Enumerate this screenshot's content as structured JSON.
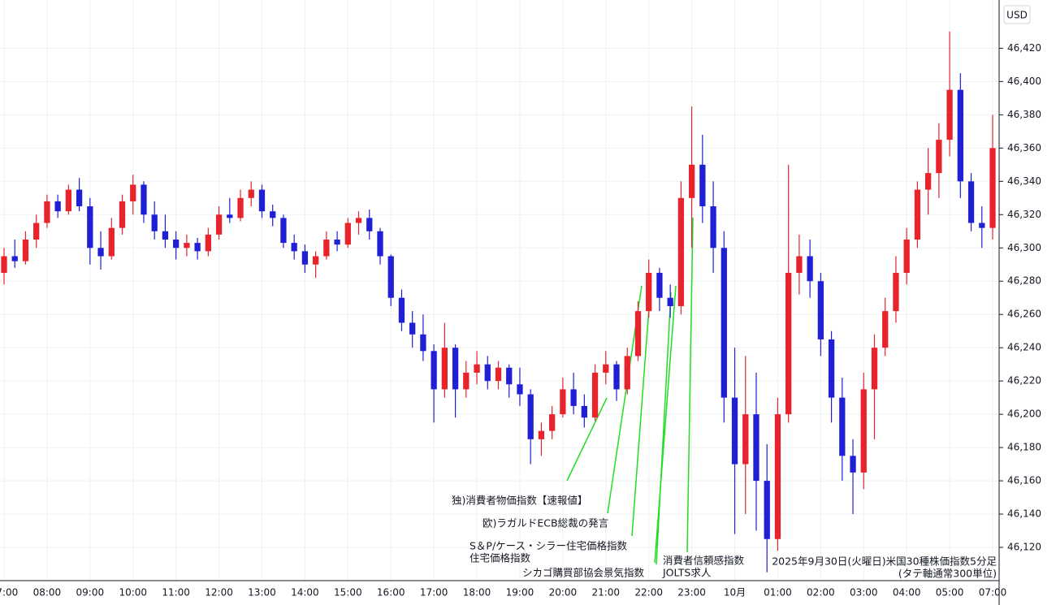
{
  "chart_data": {
    "type": "candlestick",
    "title": "2025年9月30日(火曜日)米国30種株価指数5分足",
    "subtitle": "(タテ軸通常300単位)",
    "y_unit": "USD",
    "up_color": "#e8232b",
    "down_color": "#1f1fd6",
    "grid": true,
    "ylim": [
      46100,
      46449
    ],
    "yticks": [
      {
        "value": 46120,
        "label": "46,120"
      },
      {
        "value": 46140,
        "label": "46,140"
      },
      {
        "value": 46160,
        "label": "46,160"
      },
      {
        "value": 46180,
        "label": "46,180"
      },
      {
        "value": 46200,
        "label": "46,200"
      },
      {
        "value": 46220,
        "label": "46,220"
      },
      {
        "value": 46240,
        "label": "46,240"
      },
      {
        "value": 46260,
        "label": "46,260"
      },
      {
        "value": 46280,
        "label": "46,280"
      },
      {
        "value": 46300,
        "label": "46,300"
      },
      {
        "value": 46320,
        "label": "46,320"
      },
      {
        "value": 46340,
        "label": "46,340"
      },
      {
        "value": 46360,
        "label": "46,360"
      },
      {
        "value": 46380,
        "label": "46,380"
      },
      {
        "value": 46400,
        "label": "46,400"
      },
      {
        "value": 46420,
        "label": "46,420"
      }
    ],
    "categories": [
      "07:00",
      null,
      null,
      null,
      "08:00",
      null,
      null,
      null,
      "09:00",
      null,
      null,
      null,
      "10:00",
      null,
      null,
      null,
      "11:00",
      null,
      null,
      null,
      "12:00",
      null,
      null,
      null,
      "13:00",
      null,
      null,
      null,
      "14:00",
      null,
      null,
      null,
      "15:00",
      null,
      null,
      null,
      "16:00",
      null,
      null,
      null,
      "17:00",
      null,
      null,
      null,
      "18:00",
      null,
      null,
      null,
      "19:00",
      null,
      null,
      null,
      "20:00",
      null,
      null,
      null,
      "21:00",
      null,
      null,
      null,
      "22:00",
      null,
      null,
      null,
      "23:00",
      null,
      null,
      null,
      "10月",
      null,
      null,
      null,
      "01:00",
      null,
      null,
      null,
      "02:00",
      null,
      null,
      null,
      "03:00",
      null,
      null,
      null,
      "04:00",
      null,
      null,
      null,
      "05:00",
      null,
      null,
      null,
      "07:00"
    ],
    "candles": [
      {
        "open": 46285,
        "high": 46300,
        "low": 46278,
        "close": 46295
      },
      {
        "open": 46295,
        "high": 46305,
        "low": 46288,
        "close": 46292
      },
      {
        "open": 46292,
        "high": 46310,
        "low": 46290,
        "close": 46305
      },
      {
        "open": 46305,
        "high": 46320,
        "low": 46300,
        "close": 46315
      },
      {
        "open": 46315,
        "high": 46332,
        "low": 46312,
        "close": 46328
      },
      {
        "open": 46328,
        "high": 46332,
        "low": 46318,
        "close": 46322
      },
      {
        "open": 46322,
        "high": 46338,
        "low": 46320,
        "close": 46335
      },
      {
        "open": 46335,
        "high": 46342,
        "low": 46322,
        "close": 46325
      },
      {
        "open": 46325,
        "high": 46330,
        "low": 46290,
        "close": 46300
      },
      {
        "open": 46300,
        "high": 46310,
        "low": 46287,
        "close": 46295
      },
      {
        "open": 46295,
        "high": 46318,
        "low": 46293,
        "close": 46312
      },
      {
        "open": 46312,
        "high": 46332,
        "low": 46308,
        "close": 46328
      },
      {
        "open": 46328,
        "high": 46344,
        "low": 46320,
        "close": 46338
      },
      {
        "open": 46338,
        "high": 46340,
        "low": 46315,
        "close": 46320
      },
      {
        "open": 46320,
        "high": 46328,
        "low": 46305,
        "close": 46310
      },
      {
        "open": 46310,
        "high": 46320,
        "low": 46300,
        "close": 46305
      },
      {
        "open": 46305,
        "high": 46310,
        "low": 46293,
        "close": 46300
      },
      {
        "open": 46300,
        "high": 46308,
        "low": 46295,
        "close": 46303
      },
      {
        "open": 46303,
        "high": 46306,
        "low": 46293,
        "close": 46298
      },
      {
        "open": 46298,
        "high": 46312,
        "low": 46295,
        "close": 46308
      },
      {
        "open": 46308,
        "high": 46325,
        "low": 46305,
        "close": 46320
      },
      {
        "open": 46320,
        "high": 46330,
        "low": 46315,
        "close": 46318
      },
      {
        "open": 46318,
        "high": 46335,
        "low": 46316,
        "close": 46330
      },
      {
        "open": 46330,
        "high": 46340,
        "low": 46325,
        "close": 46335
      },
      {
        "open": 46335,
        "high": 46338,
        "low": 46318,
        "close": 46322
      },
      {
        "open": 46322,
        "high": 46326,
        "low": 46313,
        "close": 46318
      },
      {
        "open": 46318,
        "high": 46320,
        "low": 46300,
        "close": 46303
      },
      {
        "open": 46303,
        "high": 46308,
        "low": 46293,
        "close": 46298
      },
      {
        "open": 46298,
        "high": 46302,
        "low": 46285,
        "close": 46290
      },
      {
        "open": 46290,
        "high": 46298,
        "low": 46282,
        "close": 46295
      },
      {
        "open": 46295,
        "high": 46310,
        "low": 46293,
        "close": 46305
      },
      {
        "open": 46305,
        "high": 46310,
        "low": 46298,
        "close": 46302
      },
      {
        "open": 46302,
        "high": 46318,
        "low": 46300,
        "close": 46315
      },
      {
        "open": 46315,
        "high": 46322,
        "low": 46308,
        "close": 46318
      },
      {
        "open": 46318,
        "high": 46323,
        "low": 46305,
        "close": 46310
      },
      {
        "open": 46310,
        "high": 46312,
        "low": 46290,
        "close": 46295
      },
      {
        "open": 46295,
        "high": 46296,
        "low": 46265,
        "close": 46270
      },
      {
        "open": 46270,
        "high": 46275,
        "low": 46250,
        "close": 46255
      },
      {
        "open": 46255,
        "high": 46262,
        "low": 46240,
        "close": 46248
      },
      {
        "open": 46248,
        "high": 46260,
        "low": 46232,
        "close": 46238
      },
      {
        "open": 46238,
        "high": 46242,
        "low": 46195,
        "close": 46215
      },
      {
        "open": 46215,
        "high": 46255,
        "low": 46210,
        "close": 46240
      },
      {
        "open": 46240,
        "high": 46242,
        "low": 46198,
        "close": 46215
      },
      {
        "open": 46215,
        "high": 46232,
        "low": 46210,
        "close": 46225
      },
      {
        "open": 46225,
        "high": 46238,
        "low": 46218,
        "close": 46230
      },
      {
        "open": 46230,
        "high": 46235,
        "low": 46215,
        "close": 46220
      },
      {
        "open": 46220,
        "high": 46232,
        "low": 46215,
        "close": 46228
      },
      {
        "open": 46228,
        "high": 46230,
        "low": 46210,
        "close": 46218
      },
      {
        "open": 46218,
        "high": 46228,
        "low": 46205,
        "close": 46212
      },
      {
        "open": 46212,
        "high": 46215,
        "low": 46170,
        "close": 46185
      },
      {
        "open": 46185,
        "high": 46195,
        "low": 46175,
        "close": 46190
      },
      {
        "open": 46190,
        "high": 46205,
        "low": 46185,
        "close": 46200
      },
      {
        "open": 46200,
        "high": 46222,
        "low": 46198,
        "close": 46215
      },
      {
        "open": 46215,
        "high": 46225,
        "low": 46200,
        "close": 46205
      },
      {
        "open": 46205,
        "high": 46212,
        "low": 46192,
        "close": 46198
      },
      {
        "open": 46198,
        "high": 46230,
        "low": 46196,
        "close": 46225
      },
      {
        "open": 46225,
        "high": 46238,
        "low": 46218,
        "close": 46230
      },
      {
        "open": 46230,
        "high": 46232,
        "low": 46208,
        "close": 46215
      },
      {
        "open": 46215,
        "high": 46240,
        "low": 46212,
        "close": 46235
      },
      {
        "open": 46235,
        "high": 46268,
        "low": 46232,
        "close": 46262
      },
      {
        "open": 46262,
        "high": 46293,
        "low": 46258,
        "close": 46285
      },
      {
        "open": 46285,
        "high": 46288,
        "low": 46262,
        "close": 46270
      },
      {
        "open": 46270,
        "high": 46278,
        "low": 46258,
        "close": 46265
      },
      {
        "open": 46265,
        "high": 46340,
        "low": 46260,
        "close": 46330
      },
      {
        "open": 46330,
        "high": 46385,
        "low": 46300,
        "close": 46350
      },
      {
        "open": 46350,
        "high": 46368,
        "low": 46315,
        "close": 46325
      },
      {
        "open": 46325,
        "high": 46340,
        "low": 46285,
        "close": 46300
      },
      {
        "open": 46300,
        "high": 46310,
        "low": 46195,
        "close": 46210
      },
      {
        "open": 46210,
        "high": 46240,
        "low": 46128,
        "close": 46170
      },
      {
        "open": 46170,
        "high": 46235,
        "low": 46140,
        "close": 46200
      },
      {
        "open": 46200,
        "high": 46225,
        "low": 46130,
        "close": 46160
      },
      {
        "open": 46160,
        "high": 46182,
        "low": 46105,
        "close": 46125
      },
      {
        "open": 46125,
        "high": 46210,
        "low": 46118,
        "close": 46200
      },
      {
        "open": 46200,
        "high": 46350,
        "low": 46195,
        "close": 46285
      },
      {
        "open": 46285,
        "high": 46308,
        "low": 46272,
        "close": 46295
      },
      {
        "open": 46295,
        "high": 46305,
        "low": 46270,
        "close": 46280
      },
      {
        "open": 46280,
        "high": 46285,
        "low": 46235,
        "close": 46245
      },
      {
        "open": 46245,
        "high": 46250,
        "low": 46195,
        "close": 46210
      },
      {
        "open": 46210,
        "high": 46222,
        "low": 46160,
        "close": 46175
      },
      {
        "open": 46175,
        "high": 46185,
        "low": 46140,
        "close": 46165
      },
      {
        "open": 46165,
        "high": 46225,
        "low": 46155,
        "close": 46215
      },
      {
        "open": 46215,
        "high": 46248,
        "low": 46185,
        "close": 46240
      },
      {
        "open": 46240,
        "high": 46270,
        "low": 46235,
        "close": 46262
      },
      {
        "open": 46262,
        "high": 46295,
        "low": 46255,
        "close": 46285
      },
      {
        "open": 46285,
        "high": 46312,
        "low": 46278,
        "close": 46305
      },
      {
        "open": 46305,
        "high": 46340,
        "low": 46300,
        "close": 46335
      },
      {
        "open": 46335,
        "high": 46360,
        "low": 46320,
        "close": 46345
      },
      {
        "open": 46345,
        "high": 46375,
        "low": 46330,
        "close": 46365
      },
      {
        "open": 46365,
        "high": 46430,
        "low": 46355,
        "close": 46395
      },
      {
        "open": 46395,
        "high": 46405,
        "low": 46330,
        "close": 46340
      },
      {
        "open": 46340,
        "high": 46345,
        "low": 46310,
        "close": 46315
      },
      {
        "open": 46315,
        "high": 46325,
        "low": 46300,
        "close": 46312
      },
      {
        "open": 46312,
        "high": 46380,
        "low": 46305,
        "close": 46360
      }
    ],
    "annotations": [
      {
        "lines": [
          "独)消費者物価指数【速報値】"
        ]
      },
      {
        "lines": [
          "欧)ラガルドECB総裁の発言"
        ]
      },
      {
        "lines": [
          "S＆P/ケース・シラー住宅価格指数",
          "住宅価格指数"
        ]
      },
      {
        "lines": [
          "シカゴ購買部協会景気指数"
        ]
      },
      {
        "lines": [
          "消費者信頼感指数"
        ]
      },
      {
        "lines": [
          "JOLTS求人"
        ]
      }
    ]
  }
}
